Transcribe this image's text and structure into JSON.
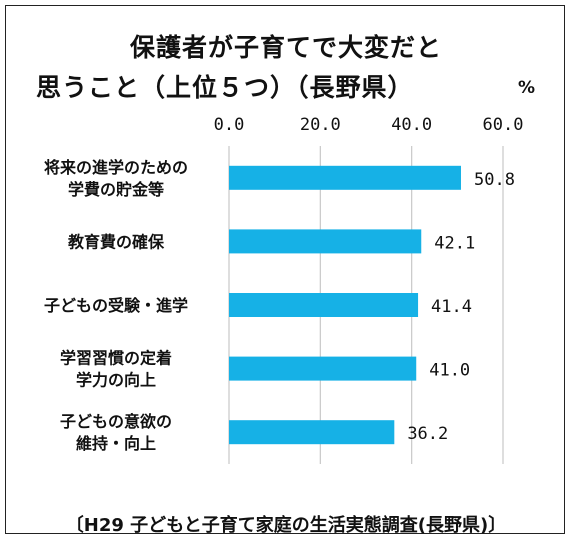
{
  "chart_data": {
    "type": "bar",
    "orientation": "horizontal",
    "title_line1": "保護者が子育てで大変だと",
    "title_line2": "思うこと（上位５つ）（長野県）",
    "unit": "%",
    "categories": [
      [
        "将来の進学のための",
        "学費の貯金等"
      ],
      [
        "教育費の確保"
      ],
      [
        "子どもの受験・進学"
      ],
      [
        "学習習慣の定着",
        "学力の向上"
      ],
      [
        "子どもの意欲の",
        "維持・向上"
      ]
    ],
    "values": [
      50.8,
      42.1,
      41.4,
      41.0,
      36.2
    ],
    "value_labels": [
      "50.8",
      "42.1",
      "41.4",
      "41.0",
      "36.2"
    ],
    "xlim": [
      0,
      60
    ],
    "ticks": [
      "0.0",
      "20.0",
      "40.0",
      "60.0"
    ],
    "tick_values": [
      0,
      20,
      40,
      60
    ],
    "grid": true,
    "bar_color": "#16b1e6",
    "source": "〔H29 子どもと子育て家庭の生活実態調査(長野県)〕"
  }
}
